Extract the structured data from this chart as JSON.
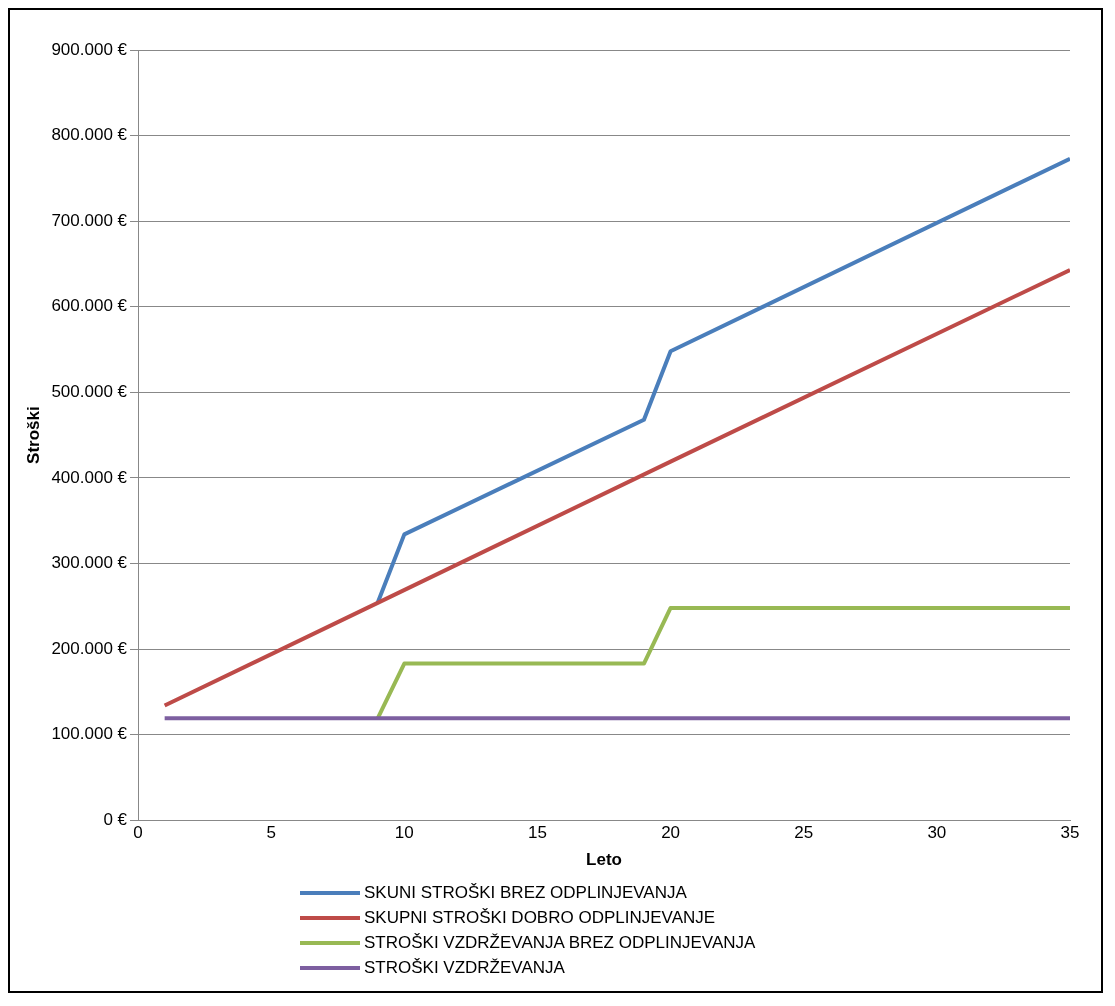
{
  "chart_data": {
    "type": "line",
    "xlabel": "Leto",
    "ylabel": "Stroški",
    "xlim": [
      0,
      35
    ],
    "xticks": [
      0,
      5,
      10,
      15,
      20,
      25,
      30,
      35
    ],
    "ylim": [
      0,
      900000
    ],
    "yticks": [
      {
        "value": 0,
        "label": "0 €"
      },
      {
        "value": 100000,
        "label": "100.000 €"
      },
      {
        "value": 200000,
        "label": "200.000 €"
      },
      {
        "value": 300000,
        "label": "300.000 €"
      },
      {
        "value": 400000,
        "label": "400.000 €"
      },
      {
        "value": 500000,
        "label": "500.000 €"
      },
      {
        "value": 600000,
        "label": "600.000 €"
      },
      {
        "value": 700000,
        "label": "700.000 €"
      },
      {
        "value": 800000,
        "label": "800.000 €"
      },
      {
        "value": 900000,
        "label": "900.000 €"
      }
    ],
    "grid": "y",
    "legend": "bottom",
    "marker": "none",
    "line_style": "solid",
    "series": [
      {
        "name": "SKUNI STROŠKI BREZ ODPLINJEVANJA",
        "color": "#4a7ebb",
        "x": [
          9,
          10,
          19,
          20,
          35
        ],
        "values": [
          254000,
          334000,
          468000,
          548000,
          773000
        ]
      },
      {
        "name": "SKUPNI STROŠKI DOBRO ODPLINJEVANJE",
        "color": "#be4b48",
        "x": [
          1,
          9,
          20,
          35
        ],
        "values": [
          134000,
          254000,
          419000,
          643000
        ]
      },
      {
        "name": "STROŠKI VZDRŽEVANJA BREZ ODPLINJEVANJA",
        "color": "#98b954",
        "x": [
          9,
          10,
          19,
          20,
          35
        ],
        "values": [
          119000,
          183000,
          183000,
          248000,
          248000
        ]
      },
      {
        "name": "STROŠKI VZDRŽEVANJA",
        "color": "#7d5fa0",
        "x": [
          1,
          35
        ],
        "values": [
          119000,
          119000
        ]
      }
    ]
  }
}
